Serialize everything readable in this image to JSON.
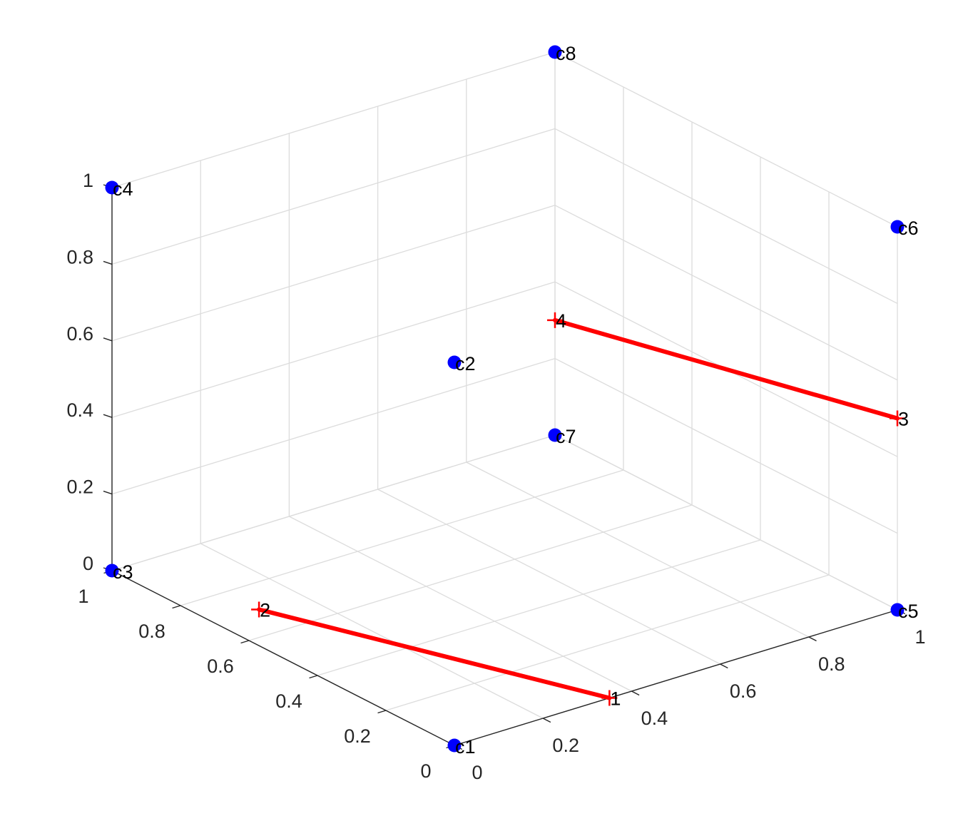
{
  "chart_data": {
    "type": "scatter3d",
    "title": "",
    "xlabel": "",
    "ylabel": "",
    "zlabel": "",
    "xlim": [
      0,
      1
    ],
    "ylim": [
      0,
      1
    ],
    "zlim": [
      0,
      1
    ],
    "grid": true,
    "x_ticks": [
      "0",
      "0.2",
      "0.4",
      "0.6",
      "0.8",
      "1"
    ],
    "y_ticks": [
      "0",
      "0.2",
      "0.4",
      "0.6",
      "0.8",
      "1"
    ],
    "z_ticks": [
      "0",
      "0.2",
      "0.4",
      "0.6",
      "0.8",
      "1"
    ],
    "colors": {
      "corners": "#0000ff",
      "segments": "#ff0000",
      "grid": "#dcdcdc",
      "axis": "#262626"
    },
    "corners": [
      {
        "label": "c1",
        "x": 0,
        "y": 0,
        "z": 0
      },
      {
        "label": "c2",
        "x": 0,
        "y": 0,
        "z": 1
      },
      {
        "label": "c3",
        "x": 0,
        "y": 1,
        "z": 0
      },
      {
        "label": "c4",
        "x": 0,
        "y": 1,
        "z": 1
      },
      {
        "label": "c5",
        "x": 1,
        "y": 0,
        "z": 0
      },
      {
        "label": "c6",
        "x": 1,
        "y": 0,
        "z": 1
      },
      {
        "label": "c7",
        "x": 1,
        "y": 1,
        "z": 0
      },
      {
        "label": "c8",
        "x": 1,
        "y": 1,
        "z": 1
      }
    ],
    "segment_points": [
      {
        "label": "1",
        "x": 0.35,
        "y": 0,
        "z": 0
      },
      {
        "label": "2",
        "x": 0.1,
        "y": 0.7,
        "z": 0
      },
      {
        "label": "3",
        "x": 1,
        "y": 0,
        "z": 0.5
      },
      {
        "label": "4",
        "x": 1,
        "y": 1,
        "z": 0.3
      }
    ],
    "segments": [
      {
        "from": "1",
        "to": "2"
      },
      {
        "from": "3",
        "to": "4"
      }
    ]
  }
}
